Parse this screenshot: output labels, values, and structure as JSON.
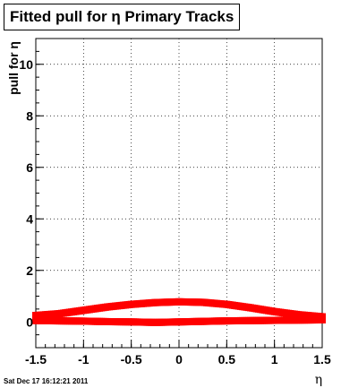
{
  "chart_data": {
    "type": "scatter",
    "title": "Fitted pull for η  Primary Tracks",
    "xlabel": "η",
    "ylabel": "pull for η",
    "xlim": [
      -1.5,
      1.5
    ],
    "ylim": [
      -1.0,
      11.0
    ],
    "x_ticks": [
      "-1.5",
      "-1",
      "-0.5",
      "0",
      "0.5",
      "1",
      "1.5"
    ],
    "y_ticks": [
      "0",
      "2",
      "4",
      "6",
      "8",
      "10"
    ],
    "grid": true,
    "marker_color": "#ff0000",
    "series": [
      {
        "x": [
          -1.5,
          -1.25,
          -1.0,
          -0.75,
          -0.5,
          -0.25,
          0.0,
          0.25,
          0.5,
          0.75,
          1.0,
          1.25,
          1.5
        ],
        "y": [
          0.25,
          0.32,
          0.45,
          0.58,
          0.68,
          0.75,
          0.78,
          0.76,
          0.68,
          0.55,
          0.4,
          0.28,
          0.2
        ]
      },
      {
        "x": [
          -1.5,
          -1.25,
          -1.0,
          -0.75,
          -0.5,
          -0.25,
          0.0,
          0.25,
          0.5,
          0.75,
          1.0,
          1.25,
          1.5
        ],
        "y": [
          0.05,
          0.04,
          0.03,
          0.01,
          0.0,
          -0.02,
          0.0,
          0.02,
          0.04,
          0.05,
          0.06,
          0.07,
          0.08
        ]
      }
    ]
  },
  "footer": {
    "timestamp": "Sat Dec 17 16:12:21 2011"
  }
}
